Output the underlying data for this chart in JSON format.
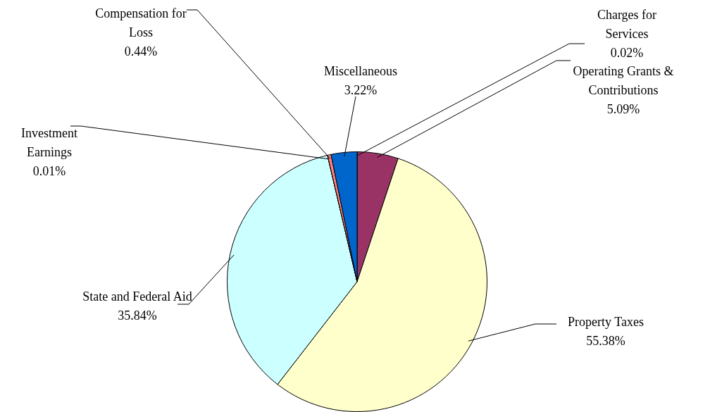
{
  "chart_data": {
    "type": "pie",
    "categories": [
      "Charges for Services",
      "Operating Grants & Contributions",
      "Property Taxes",
      "State and Federal Aid",
      "Investment Earnings",
      "Compensation for Loss",
      "Miscellaneous"
    ],
    "values": [
      0.02,
      5.09,
      55.38,
      35.84,
      0.01,
      0.44,
      3.22
    ],
    "value_labels": [
      "0.02%",
      "5.09%",
      "55.38%",
      "35.84%",
      "0.01%",
      "0.44%",
      "3.22%"
    ],
    "colors": [
      "#333399",
      "#993366",
      "#ffffcc",
      "#ccffff",
      "#666699",
      "#ff8080",
      "#0066cc"
    ],
    "legend": false
  }
}
